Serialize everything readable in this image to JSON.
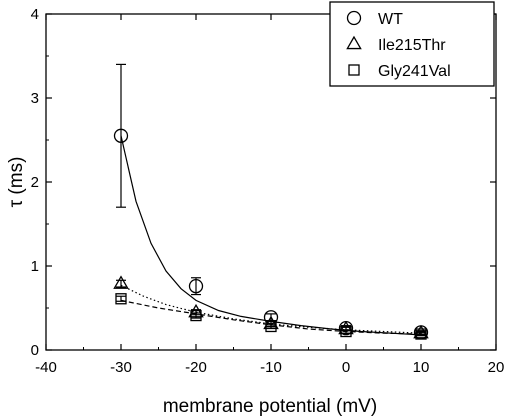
{
  "chart_data": {
    "type": "scatter",
    "xlabel": "membrane potential (mV)",
    "ylabel": "τ (ms)",
    "xlim": [
      -40,
      20
    ],
    "ylim": [
      0,
      4
    ],
    "xticks": [
      -40,
      -30,
      -20,
      -10,
      0,
      10,
      20
    ],
    "yticks": [
      0,
      1,
      2,
      3,
      4
    ],
    "grid": false,
    "legend": "top-right",
    "series": [
      {
        "name": "WT",
        "marker": "circle",
        "line_style": "solid",
        "x": [
          -30,
          -20,
          -10,
          0,
          10
        ],
        "y": [
          2.55,
          0.76,
          0.39,
          0.26,
          0.21
        ],
        "err": [
          0.85,
          0.1,
          0.04,
          0.03,
          0.02
        ],
        "fit": [
          [
            -30,
            2.55
          ],
          [
            -28,
            1.77
          ],
          [
            -26,
            1.27
          ],
          [
            -24,
            0.94
          ],
          [
            -22,
            0.73
          ],
          [
            -20,
            0.59
          ],
          [
            -17,
            0.47
          ],
          [
            -14,
            0.4
          ],
          [
            -10,
            0.34
          ],
          [
            -6,
            0.29
          ],
          [
            -2,
            0.25
          ],
          [
            2,
            0.22
          ],
          [
            6,
            0.2
          ],
          [
            10,
            0.18
          ]
        ]
      },
      {
        "name": "Ile215Thr",
        "marker": "triangle",
        "line_style": "dotted",
        "x": [
          -30,
          -20,
          -10,
          0,
          10
        ],
        "y": [
          0.79,
          0.45,
          0.31,
          0.25,
          0.2
        ],
        "err": [
          0.04,
          0.03,
          0.03,
          0.02,
          0.02
        ],
        "fit": [
          [
            -30,
            0.77
          ],
          [
            -27,
            0.64
          ],
          [
            -24,
            0.54
          ],
          [
            -20,
            0.45
          ],
          [
            -15,
            0.37
          ],
          [
            -10,
            0.31
          ],
          [
            -5,
            0.27
          ],
          [
            0,
            0.24
          ],
          [
            5,
            0.22
          ],
          [
            10,
            0.2
          ]
        ]
      },
      {
        "name": "Gly241Val",
        "marker": "square",
        "line_style": "dashed",
        "x": [
          -30,
          -20,
          -10,
          0,
          10
        ],
        "y": [
          0.61,
          0.41,
          0.28,
          0.22,
          0.19
        ],
        "err": [
          0.03,
          0.03,
          0.02,
          0.02,
          0.02
        ],
        "fit": [
          [
            -30,
            0.59
          ],
          [
            -25,
            0.5
          ],
          [
            -20,
            0.43
          ],
          [
            -15,
            0.36
          ],
          [
            -10,
            0.3
          ],
          [
            -5,
            0.25
          ],
          [
            0,
            0.22
          ],
          [
            5,
            0.2
          ],
          [
            10,
            0.19
          ]
        ]
      }
    ]
  }
}
